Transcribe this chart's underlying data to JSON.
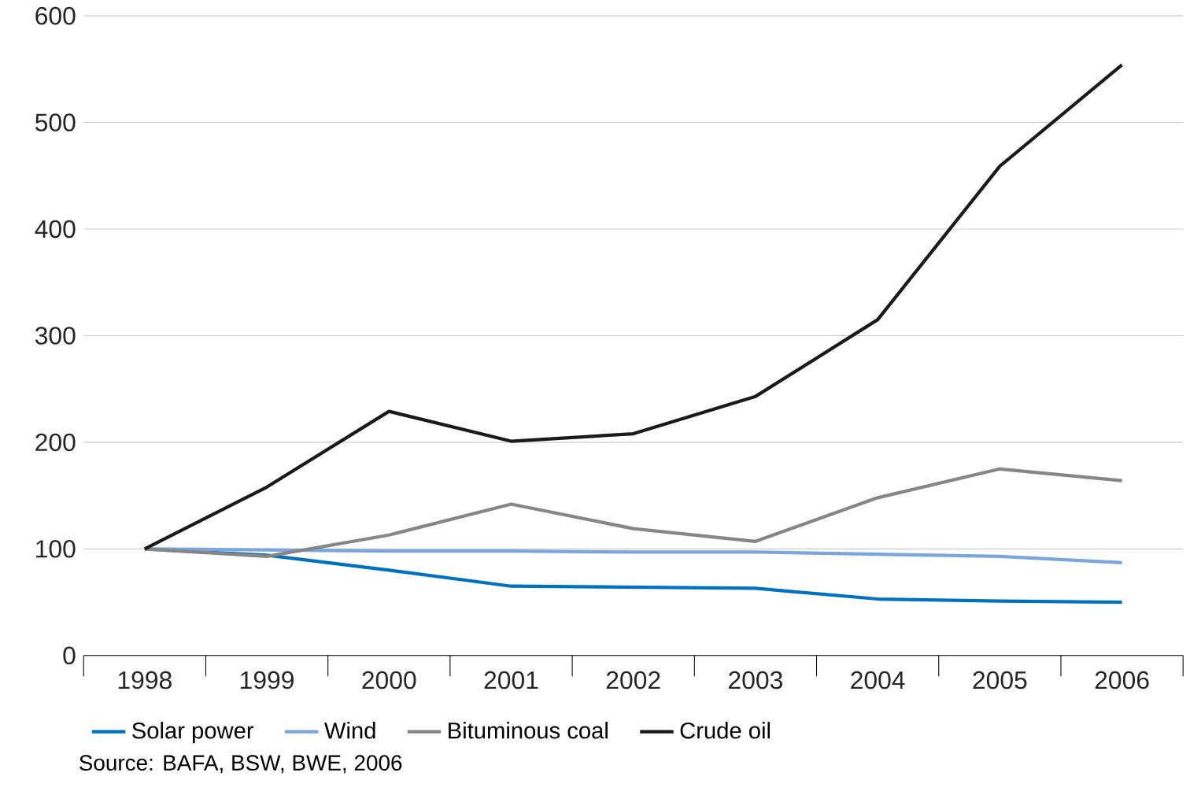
{
  "chart_data": {
    "type": "line",
    "categories": [
      "1998",
      "1999",
      "2000",
      "2001",
      "2002",
      "2003",
      "2004",
      "2005",
      "2006"
    ],
    "ylim": [
      0,
      600
    ],
    "yticks": [
      0,
      100,
      200,
      300,
      400,
      500,
      600
    ],
    "grid": "y",
    "legend": "bottom",
    "series": [
      {
        "name": "Solar power",
        "color": "#0070c0",
        "values": [
          100,
          94,
          80,
          65,
          64,
          63,
          53,
          51,
          50
        ]
      },
      {
        "name": "Wind",
        "color": "#7aa6dc",
        "values": [
          100,
          99,
          98,
          98,
          97,
          97,
          95,
          93,
          87
        ]
      },
      {
        "name": "Bituminous coal",
        "color": "#868686",
        "values": [
          100,
          93,
          113,
          142,
          119,
          107,
          148,
          175,
          164
        ]
      },
      {
        "name": "Crude oil",
        "color": "#1a1a1a",
        "values": [
          100,
          158,
          229,
          201,
          208,
          243,
          315,
          459,
          554
        ]
      }
    ],
    "annotations": [
      "Source: BAFA, BSW, BWE, 2006"
    ]
  }
}
